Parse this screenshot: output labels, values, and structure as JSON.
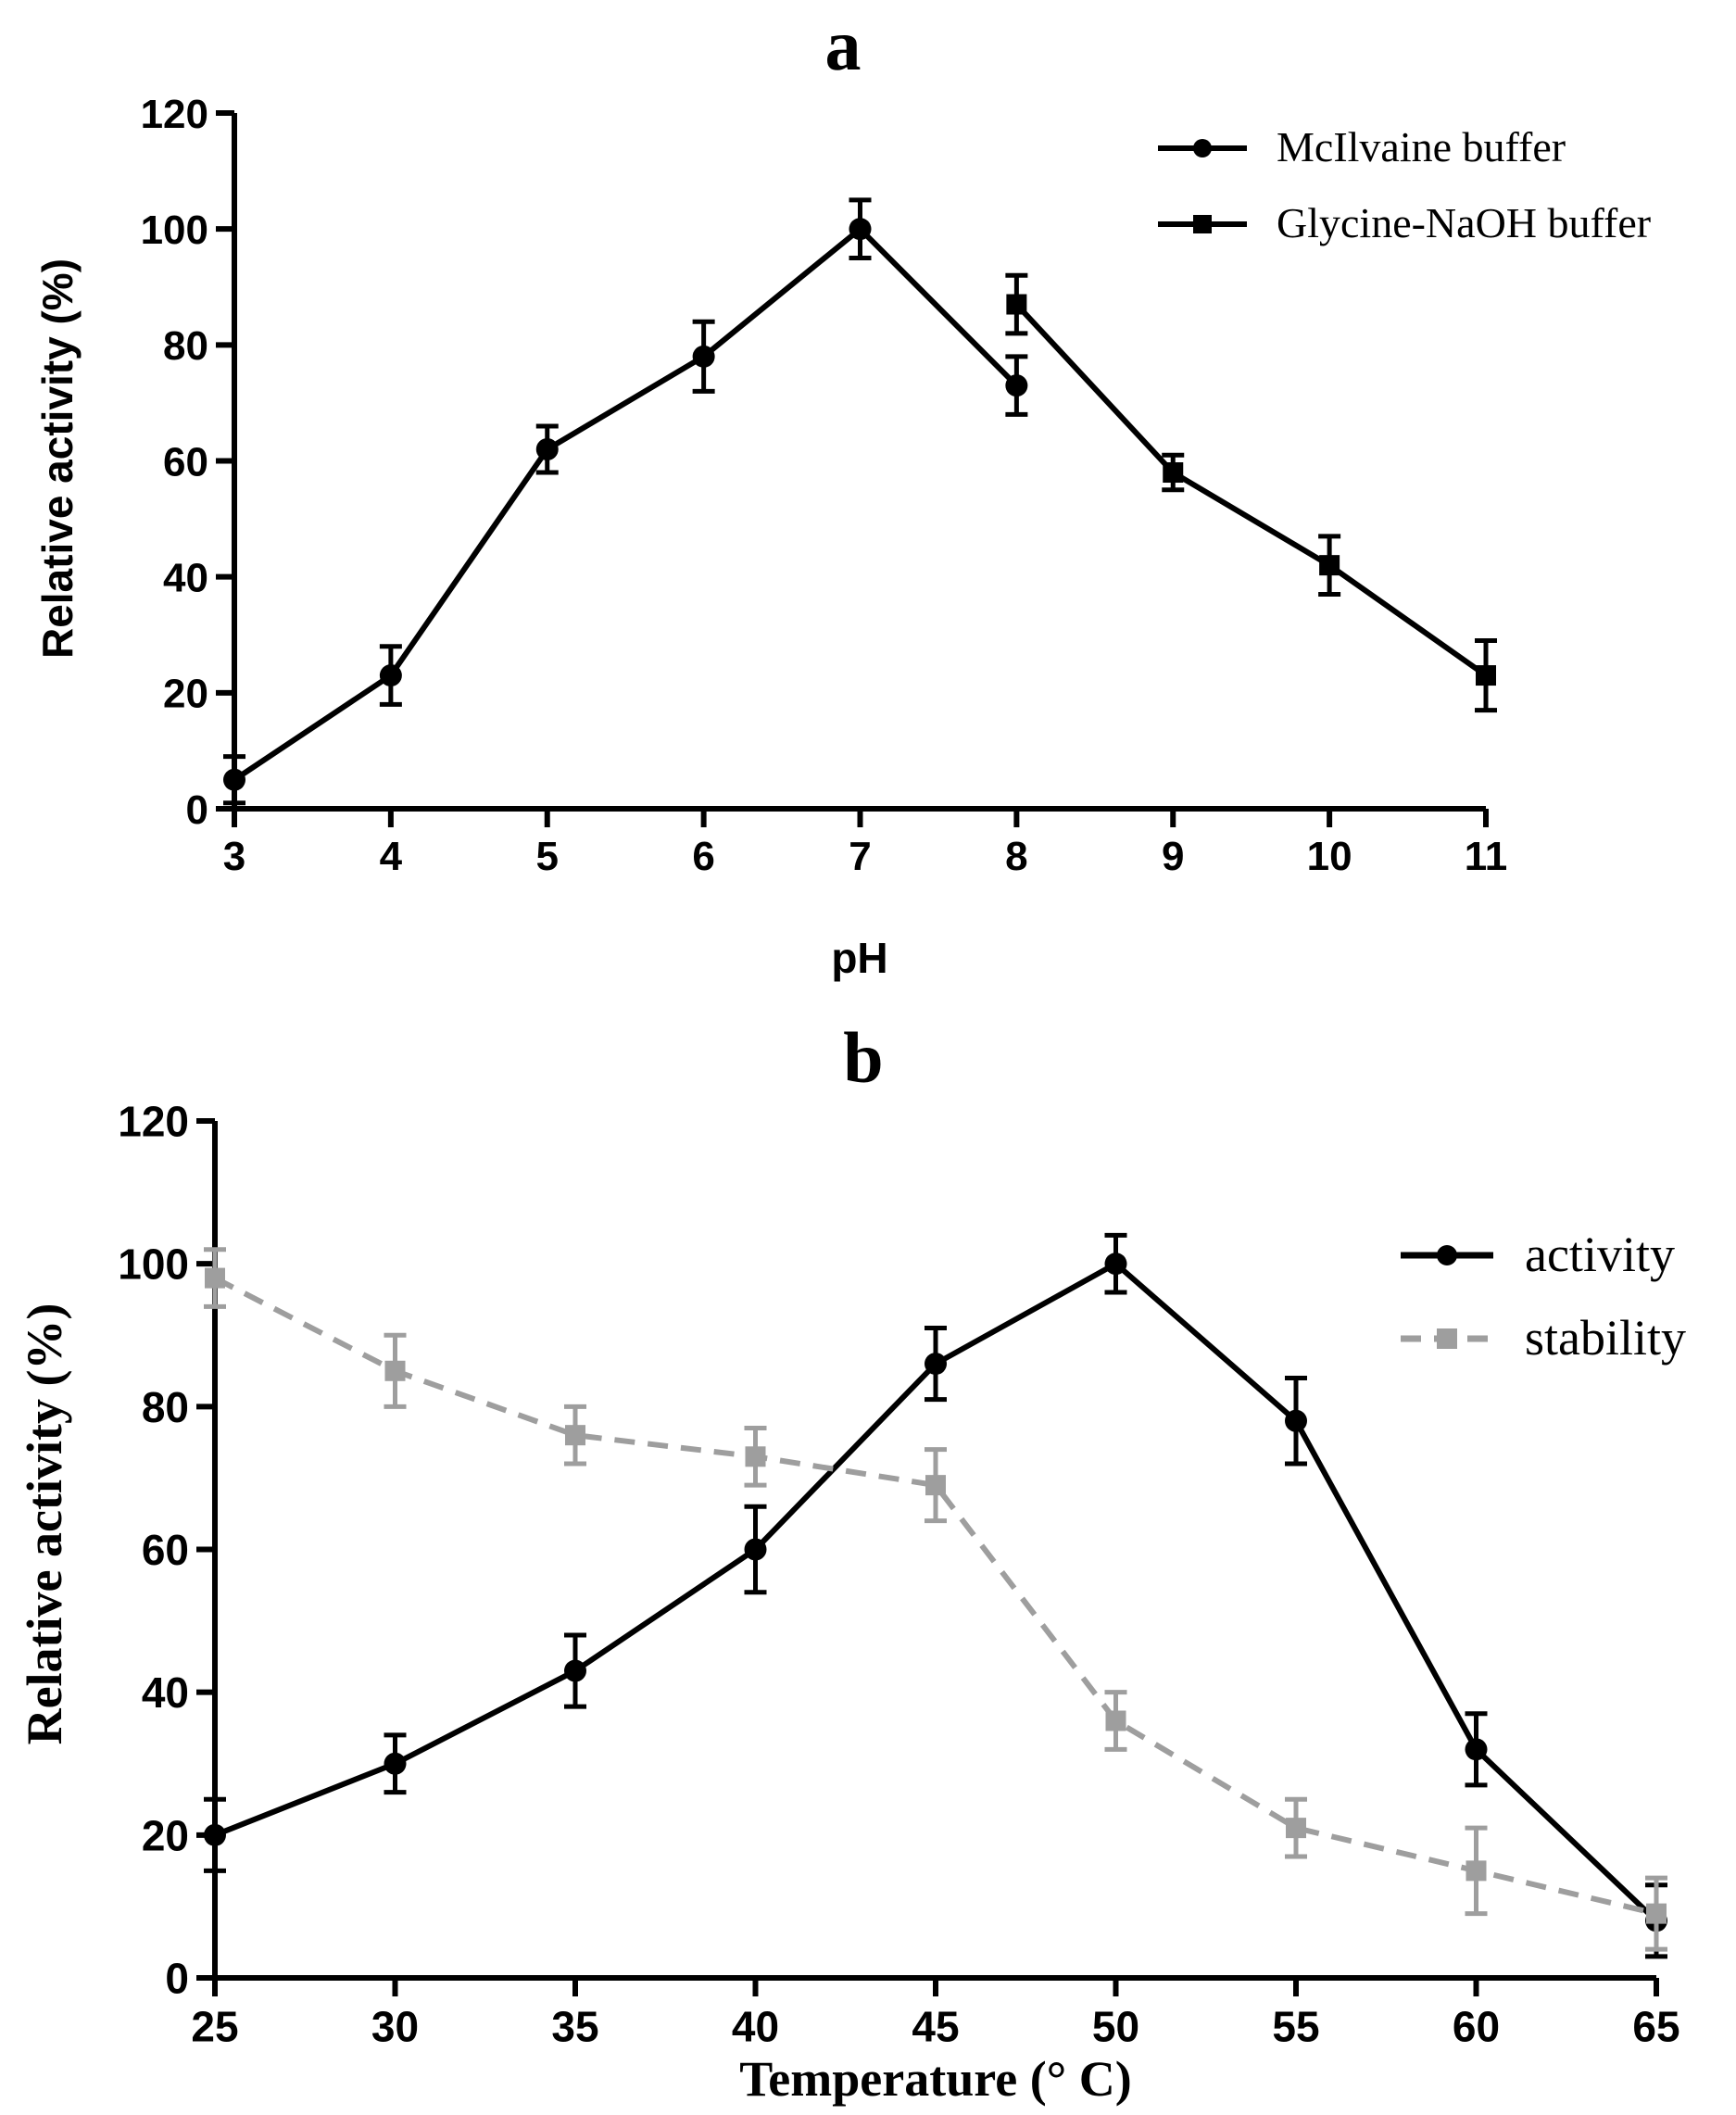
{
  "colors": {
    "primary": "#000000",
    "stability": "#9e9e9e"
  },
  "chart_data": [
    {
      "panel": "a",
      "type": "line",
      "title": "a",
      "xlabel": "pH",
      "ylabel": "Relative activity (%)",
      "xlim": [
        3,
        11
      ],
      "ylim": [
        0,
        120
      ],
      "xticks": [
        3,
        4,
        5,
        6,
        7,
        8,
        9,
        10,
        11
      ],
      "yticks": [
        0,
        20,
        40,
        60,
        80,
        100,
        120
      ],
      "legend_position": "top-right",
      "series": [
        {
          "name": "McIlvaine buffer",
          "marker": "circle",
          "style": "solid",
          "x": [
            3,
            4,
            5,
            6,
            7,
            8
          ],
          "values": [
            5,
            23,
            62,
            78,
            100,
            73
          ],
          "errors": [
            4,
            5,
            4,
            6,
            5,
            5
          ]
        },
        {
          "name": "Glycine-NaOH buffer",
          "marker": "square",
          "style": "solid",
          "x": [
            8,
            9,
            10,
            11
          ],
          "values": [
            87,
            58,
            42,
            23
          ],
          "errors": [
            5,
            3,
            5,
            6
          ]
        }
      ]
    },
    {
      "panel": "b",
      "type": "line",
      "title": "b",
      "xlabel": "Temperature (° C)",
      "ylabel": "Relative activity (%)",
      "xlim": [
        25,
        65
      ],
      "ylim": [
        0,
        120
      ],
      "xticks": [
        25,
        30,
        35,
        40,
        45,
        50,
        55,
        60,
        65
      ],
      "yticks": [
        0,
        20,
        40,
        60,
        80,
        100,
        120
      ],
      "legend_position": "top-right",
      "series": [
        {
          "name": "activity",
          "marker": "circle",
          "style": "solid",
          "color": "primary",
          "x": [
            25,
            30,
            35,
            40,
            45,
            50,
            55,
            60,
            65
          ],
          "values": [
            20,
            30,
            43,
            60,
            86,
            100,
            78,
            32,
            8
          ],
          "errors": [
            5,
            4,
            5,
            6,
            5,
            4,
            6,
            5,
            5
          ]
        },
        {
          "name": "stability",
          "marker": "square",
          "style": "dashed",
          "color": "stability",
          "x": [
            25,
            30,
            35,
            40,
            45,
            50,
            55,
            60,
            65
          ],
          "values": [
            98,
            85,
            76,
            73,
            69,
            36,
            21,
            15,
            9
          ],
          "errors": [
            4,
            5,
            4,
            4,
            5,
            4,
            4,
            6,
            5
          ]
        }
      ]
    }
  ]
}
